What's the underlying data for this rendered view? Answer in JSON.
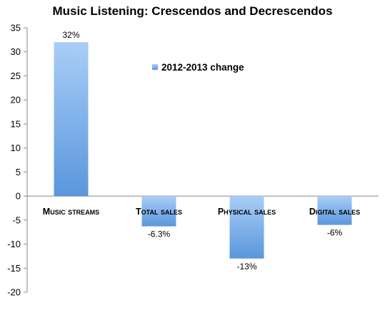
{
  "chart_data": {
    "type": "bar",
    "title": "Music Listening: Crescendos and Decrescendos",
    "categories": [
      "Music streams",
      "Total sales",
      "Physical sales",
      "Digital sales"
    ],
    "series": [
      {
        "name": "2012-2013 change",
        "values": [
          32,
          -6.3,
          -13,
          -6
        ]
      }
    ],
    "data_labels": [
      "32%",
      "-6.3%",
      "-13%",
      "-6%"
    ],
    "ylim": [
      -20,
      35
    ],
    "yticks": [
      -20,
      -15,
      -10,
      -5,
      0,
      5,
      10,
      15,
      20,
      25,
      30,
      35
    ],
    "legend_position": "inside-top-center",
    "grid": false,
    "colors": {
      "bar_top": "#a9cdf7",
      "bar_bottom": "#5a97dc",
      "axis": "#888888"
    }
  }
}
